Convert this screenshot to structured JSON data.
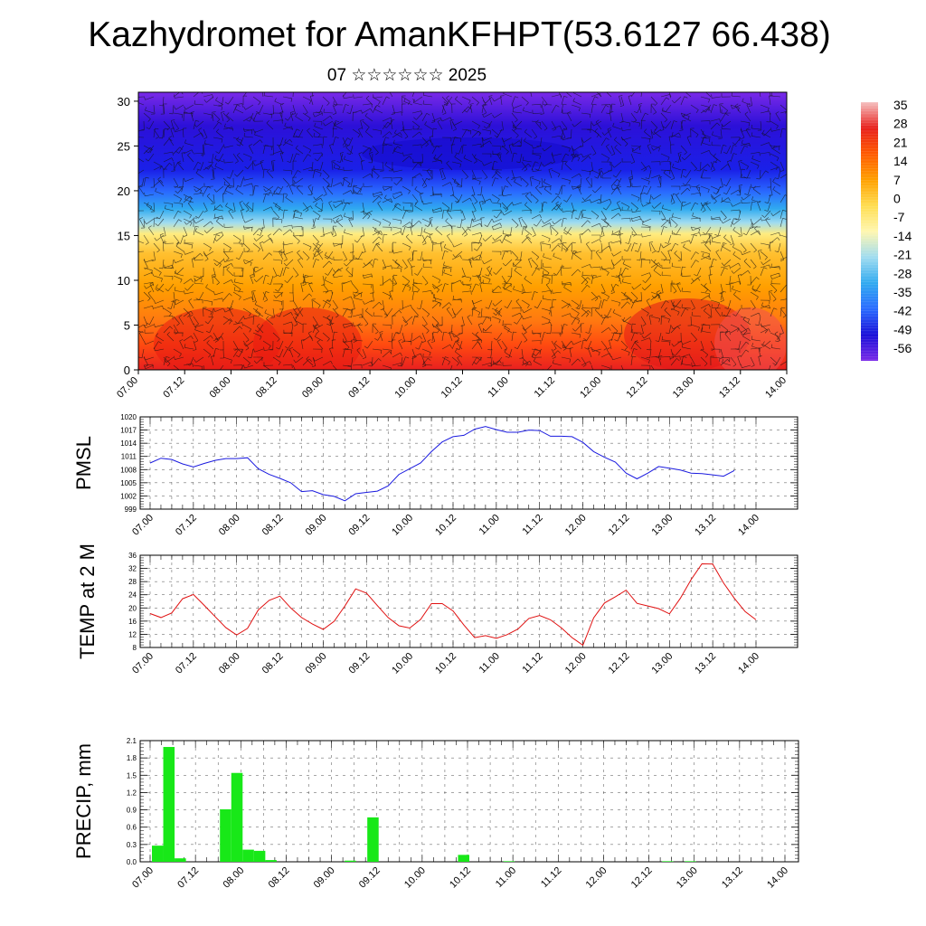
{
  "header": {
    "title": "Kazhydromet for AmanKFHPT(53.6127 66.438)",
    "subtitle": "07 ☆☆☆☆☆☆ 2025"
  },
  "chart_data": [
    {
      "type": "heatmap",
      "title": "",
      "y_ticks": [
        0,
        5,
        10,
        15,
        20,
        25,
        30
      ],
      "ylim": [
        0,
        31
      ],
      "x_tick_labels": [
        "07.00",
        "07.12",
        "08.00",
        "08.12",
        "09.00",
        "09.12",
        "10.00",
        "10.12",
        "11.00",
        "11.12",
        "12.00",
        "12.12",
        "13.00",
        "13.12",
        "14.00"
      ],
      "colorbar": {
        "labels": [
          35,
          28,
          21,
          14,
          7,
          0,
          -7,
          -14,
          -21,
          -28,
          -35,
          -42,
          -49,
          -56
        ],
        "colors": [
          "#f5c0c0",
          "#e8201c",
          "#ff5a00",
          "#ffa000",
          "#ffdd50",
          "#fff7b0",
          "#a0dcf0",
          "#30aaf0",
          "#2a6bff",
          "#1a10d8",
          "#7a2ae8"
        ]
      },
      "overlay": "wind barbs"
    },
    {
      "type": "line",
      "ylabel": "PMSL",
      "ylim": [
        999,
        1020
      ],
      "y_ticks": [
        999,
        1002,
        1005,
        1008,
        1011,
        1014,
        1017,
        1020
      ],
      "x_tick_labels": [
        "07.00",
        "07.12",
        "08.00",
        "08.12",
        "09.00",
        "09.12",
        "10.00",
        "10.12",
        "11.00",
        "11.12",
        "12.00",
        "12.12",
        "13.00",
        "13.12",
        "14.00"
      ],
      "x_step_hours": 3,
      "series": [
        {
          "color": "#1a1adf",
          "values": [
            1009.5,
            1010.6,
            1010.3,
            1009.3,
            1008.6,
            1009.4,
            1010.1,
            1010.5,
            1010.5,
            1010.7,
            1008.2,
            1006.9,
            1006.0,
            1005.0,
            1003.0,
            1003.2,
            1002.3,
            1001.9,
            1000.9,
            1002.5,
            1002.8,
            1003.1,
            1004.3,
            1006.9,
            1008.2,
            1009.5,
            1012.1,
            1014.3,
            1015.5,
            1015.8,
            1017.2,
            1017.8,
            1017.1,
            1016.5,
            1016.5,
            1017.0,
            1016.9,
            1015.6,
            1015.6,
            1015.5,
            1014.2,
            1012.1,
            1010.8,
            1009.7,
            1007.2,
            1005.9,
            1007.2,
            1008.7,
            1008.3,
            1007.9,
            1007.2,
            1007.1,
            1006.8,
            1006.5,
            1007.8
          ]
        }
      ]
    },
    {
      "type": "line",
      "ylabel": "TEMP at 2 M",
      "ylim": [
        8,
        36
      ],
      "y_ticks": [
        8,
        12,
        16,
        20,
        24,
        28,
        32,
        36
      ],
      "x_tick_labels": [
        "07.00",
        "07.12",
        "08.00",
        "08.12",
        "09.00",
        "09.12",
        "10.00",
        "10.12",
        "11.00",
        "11.12",
        "12.00",
        "12.12",
        "13.00",
        "13.12",
        "14.00"
      ],
      "x_step_hours": 3,
      "series": [
        {
          "color": "#e01010",
          "values": [
            18.3,
            17.1,
            18.5,
            22.8,
            24.1,
            20.8,
            17.4,
            14.0,
            11.8,
            13.8,
            19.4,
            22.3,
            23.6,
            20.0,
            17.1,
            15.1,
            13.5,
            15.9,
            20.6,
            25.8,
            24.5,
            20.7,
            17.1,
            14.6,
            13.9,
            16.5,
            21.3,
            21.3,
            19.1,
            14.8,
            11.0,
            11.6,
            10.8,
            11.9,
            13.6,
            16.8,
            17.7,
            16.4,
            14.0,
            11.0,
            8.7,
            17.0,
            21.5,
            23.4,
            25.4,
            21.4,
            20.6,
            19.8,
            18.2,
            22.9,
            28.6,
            33.4,
            33.3,
            27.6,
            22.9,
            18.9,
            16.4
          ]
        }
      ]
    },
    {
      "type": "bar",
      "ylabel": "PRECIP, mm",
      "ylim": [
        0,
        2.1
      ],
      "y_ticks": [
        0.0,
        0.3,
        0.6,
        0.9,
        1.2,
        1.5,
        1.8,
        2.1
      ],
      "y_tick_labels": [
        "0.0",
        "0.3",
        "0.6",
        "0.9",
        "1.2",
        "1.5",
        "1.8",
        "2.1"
      ],
      "x_tick_labels": [
        "07.00",
        "07.12",
        "08.00",
        "08.12",
        "09.00",
        "09.12",
        "10.00",
        "10.12",
        "11.00",
        "11.12",
        "12.00",
        "12.12",
        "13.00",
        "13.12",
        "14.00"
      ],
      "x_step_hours": 3,
      "bar_color": "#18e818",
      "values": [
        0.28,
        1.99,
        0.06,
        0,
        0,
        0,
        0.91,
        1.54,
        0.21,
        0.19,
        0.03,
        0,
        0,
        0,
        0,
        0,
        0,
        0.02,
        0,
        0.77,
        0,
        0,
        0,
        0,
        0,
        0,
        0,
        0.12,
        0,
        0,
        0,
        0.01,
        0,
        0,
        0,
        0,
        0,
        0,
        0,
        0,
        0,
        0,
        0,
        0,
        0,
        0.01,
        0,
        0.01,
        0,
        0,
        0,
        0,
        0,
        0,
        0,
        0
      ]
    }
  ]
}
